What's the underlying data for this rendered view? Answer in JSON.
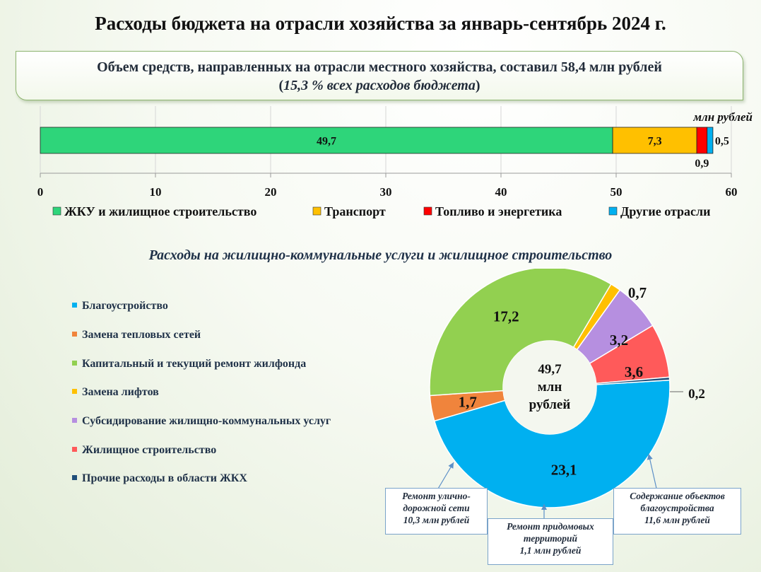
{
  "title": "Расходы бюджета на отрасли хозяйства за январь-сентябрь 2024 г.",
  "summary": {
    "line1": "Объем средств, направленных на отрасли местного хозяйства, составил 58,4 млн рублей",
    "line2_open": "(",
    "line2_italic": "15,3 % всех расходов бюджета",
    "line2_close": ")"
  },
  "colors": {
    "green": "#2ed57a",
    "orange": "#ffc000",
    "red": "#ff0000",
    "blue": "#00b0f0",
    "donut_blue": "#00b0f0",
    "donut_orange": "#f0843c",
    "donut_green": "#92d050",
    "donut_yellow": "#ffc000",
    "donut_purple": "#b68fe0",
    "donut_red": "#ff5a5a",
    "donut_navy": "#1f4e79"
  },
  "chart_data": [
    {
      "type": "bar",
      "orientation": "horizontal-stacked",
      "unit_label": "млн рублей",
      "xlim": [
        0,
        60
      ],
      "xticks": [
        "0",
        "10",
        "20",
        "30",
        "40",
        "50",
        "60"
      ],
      "grid": true,
      "legend_position": "bottom",
      "series": [
        {
          "name": "ЖКУ и жилищное строительство",
          "value": 49.7,
          "label": "49,7",
          "color": "#2ed57a"
        },
        {
          "name": "Транспорт",
          "value": 7.3,
          "label": "7,3",
          "color": "#ffc000"
        },
        {
          "name": "Топливо и энергетика",
          "value": 0.9,
          "label": "0,9",
          "color": "#ff0000"
        },
        {
          "name": "Другие отрасли",
          "value": 0.5,
          "label": "0,5",
          "color": "#00b0f0"
        }
      ]
    },
    {
      "type": "pie",
      "subtype": "donut",
      "title": "Расходы на жилищно-коммунальные услуги и жилищное строительство",
      "center_lines": [
        "49,7",
        "млн",
        "рублей"
      ],
      "legend_position": "left",
      "slices": [
        {
          "name": "Благоустройство",
          "value": 23.1,
          "label": "23,1",
          "color": "#00b0f0"
        },
        {
          "name": "Замена тепловых сетей",
          "value": 1.7,
          "label": "1,7",
          "color": "#f0843c"
        },
        {
          "name": "Капитальный  и текущий ремонт жилфонда",
          "value": 17.2,
          "label": "17,2",
          "color": "#92d050"
        },
        {
          "name": "Замена лифтов",
          "value": 0.7,
          "label": "0,7",
          "color": "#ffc000"
        },
        {
          "name": "Субсидирование жилищно-коммунальных услуг",
          "value": 3.2,
          "label": "3,2",
          "color": "#b68fe0"
        },
        {
          "name": "Жилищное строительство",
          "value": 3.6,
          "label": "3,6",
          "color": "#ff5a5a"
        },
        {
          "name": "Прочие расходы в области ЖКХ",
          "value": 0.2,
          "label": "0,2",
          "color": "#1f4e79"
        }
      ]
    }
  ],
  "callouts": [
    {
      "lines": [
        "Ремонт улично-",
        "дорожной сети",
        "10,3 млн рублей"
      ]
    },
    {
      "lines": [
        "Ремонт придомовых",
        "территорий",
        "1,1 млн рублей"
      ]
    },
    {
      "lines": [
        "Содержание объектов",
        "благоустройства",
        "11,6 млн рублей"
      ]
    }
  ]
}
